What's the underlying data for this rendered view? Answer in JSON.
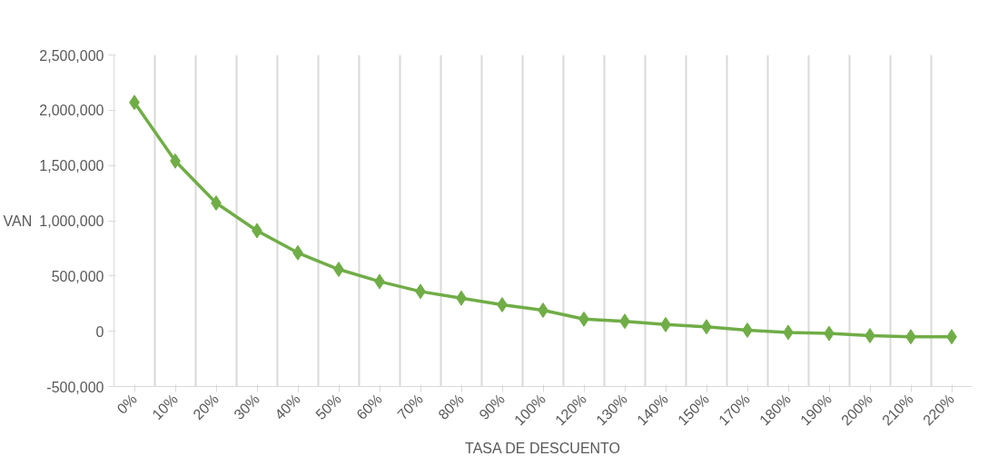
{
  "chart_data": {
    "type": "line",
    "xlabel": "TASA DE DESCUENTO",
    "ylabel": "VAN",
    "categories": [
      "0%",
      "10%",
      "20%",
      "30%",
      "40%",
      "50%",
      "60%",
      "70%",
      "80%",
      "90%",
      "100%",
      "120%",
      "130%",
      "140%",
      "150%",
      "170%",
      "180%",
      "190%",
      "200%",
      "210%",
      "220%"
    ],
    "series": [
      {
        "color": "#70ad47",
        "values": [
          2070000,
          1540000,
          1160000,
          910000,
          710000,
          560000,
          450000,
          360000,
          300000,
          240000,
          190000,
          110000,
          90000,
          60000,
          40000,
          10000,
          -10000,
          -20000,
          -40000,
          -50000,
          -50000
        ]
      }
    ],
    "ylim": [
      -500000,
      2500000
    ],
    "yticks": [
      {
        "value": -500000,
        "label": "-500,000"
      },
      {
        "value": 0,
        "label": "0"
      },
      {
        "value": 500000,
        "label": "500,000"
      },
      {
        "value": 1000000,
        "label": "1,000,000"
      },
      {
        "value": 1500000,
        "label": "1,500,000"
      },
      {
        "value": 2000000,
        "label": "2,000,000"
      },
      {
        "value": 2500000,
        "label": "2,500,000"
      }
    ],
    "grid": "x",
    "marker": "diamond",
    "line_style": "solid"
  }
}
